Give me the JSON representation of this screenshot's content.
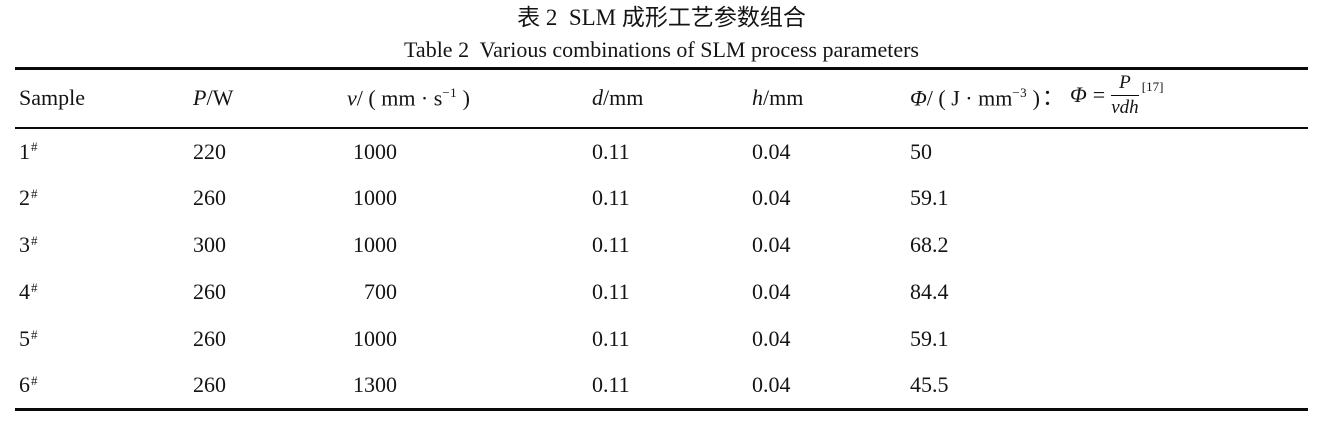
{
  "caption": {
    "zh": "表 2  SLM 成形工艺参数组合",
    "en": "Table 2  Various combinations of SLM process parameters"
  },
  "table": {
    "header": {
      "sample": "Sample",
      "power": {
        "symbol": "P",
        "unit": "/W"
      },
      "speed": {
        "symbol": "v",
        "slash": "/ ( mm · s",
        "sup": "−1",
        "close": " )"
      },
      "beam": {
        "symbol": "d",
        "unit": "/mm"
      },
      "hatch": {
        "symbol": "h",
        "unit": "/mm"
      },
      "energy": {
        "symbol": "Φ",
        "slash": "/ ( J · mm",
        "sup": "−3",
        "close": " )",
        "colon": "：",
        "formula_lhs": "Φ",
        "formula_eq": "=",
        "formula_num": "P",
        "formula_den": "vdh",
        "formula_ref": "[17]"
      }
    },
    "rows": [
      {
        "sample": "1",
        "marker": "#",
        "p": "220",
        "v": "1000",
        "d": "0.11",
        "h": "0.04",
        "phi": "50"
      },
      {
        "sample": "2",
        "marker": "#",
        "p": "260",
        "v": "1000",
        "d": "0.11",
        "h": "0.04",
        "phi": "59.1"
      },
      {
        "sample": "3",
        "marker": "#",
        "p": "300",
        "v": "1000",
        "d": "0.11",
        "h": "0.04",
        "phi": "68.2"
      },
      {
        "sample": "4",
        "marker": "#",
        "p": "260",
        "v": "700",
        "d": "0.11",
        "h": "0.04",
        "phi": "84.4"
      },
      {
        "sample": "5",
        "marker": "#",
        "p": "260",
        "v": "1000",
        "d": "0.11",
        "h": "0.04",
        "phi": "59.1"
      },
      {
        "sample": "6",
        "marker": "#",
        "p": "260",
        "v": "1300",
        "d": "0.11",
        "h": "0.04",
        "phi": "45.5"
      }
    ]
  }
}
